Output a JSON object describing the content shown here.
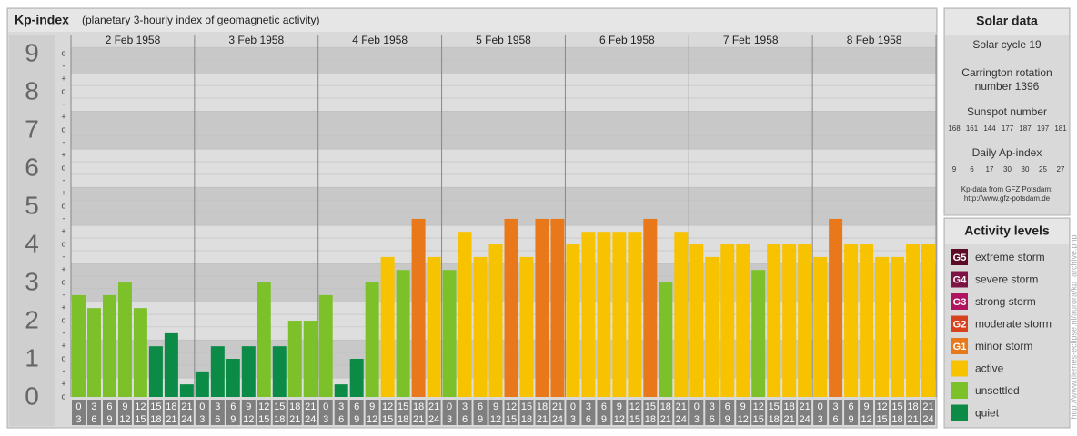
{
  "chart_data": {
    "type": "bar",
    "title": "Kp-index",
    "subtitle": "(planetary 3-hourly index of geomagnetic activity)",
    "days": [
      "2 Feb 1958",
      "3 Feb 1958",
      "4 Feb 1958",
      "5 Feb 1958",
      "6 Feb 1958",
      "7 Feb 1958",
      "8 Feb 1958"
    ],
    "hour_labels": [
      [
        "0",
        "3"
      ],
      [
        "3",
        "6"
      ],
      [
        "6",
        "9"
      ],
      [
        "9",
        "12"
      ],
      [
        "12",
        "15"
      ],
      [
        "15",
        "18"
      ],
      [
        "18",
        "21"
      ],
      [
        "21",
        "24"
      ]
    ],
    "values": [
      [
        2.67,
        2.33,
        2.67,
        3,
        2.33,
        1.33,
        1.67,
        0.33
      ],
      [
        0.67,
        1.33,
        1,
        1.33,
        3,
        1.33,
        2,
        2
      ],
      [
        2.67,
        0.33,
        1,
        3,
        3.67,
        3.33,
        4.67,
        3.67
      ],
      [
        3.33,
        4.33,
        3.67,
        4,
        4.67,
        3.67,
        4.67,
        4.67
      ],
      [
        4,
        4.33,
        4.33,
        4.33,
        4.33,
        4.67,
        3,
        4.33
      ],
      [
        4,
        3.67,
        4,
        4,
        3.33,
        4,
        4,
        4
      ],
      [
        3.67,
        4.67,
        4,
        4,
        3.67,
        3.67,
        4,
        4
      ]
    ],
    "colors": [
      [
        "#7dc12a",
        "#7dc12a",
        "#7dc12a",
        "#7dc12a",
        "#7dc12a",
        "#0b8b45",
        "#0b8b45",
        "#0b8b45"
      ],
      [
        "#0b8b45",
        "#0b8b45",
        "#0b8b45",
        "#0b8b45",
        "#7dc12a",
        "#0b8b45",
        "#7dc12a",
        "#7dc12a"
      ],
      [
        "#7dc12a",
        "#0b8b45",
        "#0b8b45",
        "#7dc12a",
        "#f7c300",
        "#7dc12a",
        "#e8781a",
        "#f7c300"
      ],
      [
        "#7dc12a",
        "#f7c300",
        "#f7c300",
        "#f7c300",
        "#e8781a",
        "#f7c300",
        "#e8781a",
        "#e8781a"
      ],
      [
        "#f7c300",
        "#f7c300",
        "#f7c300",
        "#f7c300",
        "#f7c300",
        "#e8781a",
        "#7dc12a",
        "#f7c300"
      ],
      [
        "#f7c300",
        "#f7c300",
        "#f7c300",
        "#f7c300",
        "#7dc12a",
        "#f7c300",
        "#f7c300",
        "#f7c300"
      ],
      [
        "#f7c300",
        "#e8781a",
        "#f7c300",
        "#f7c300",
        "#f7c300",
        "#f7c300",
        "#f7c300",
        "#f7c300"
      ]
    ],
    "ylim": [
      0,
      9.17
    ],
    "yticks": [
      0,
      1,
      2,
      3,
      4,
      5,
      6,
      7,
      8,
      9
    ],
    "minor_ticks": [
      {
        "value": 0,
        "label": "o"
      },
      {
        "value": 0.33,
        "label": "+"
      },
      {
        "value": 0.67,
        "label": "-"
      },
      {
        "value": 1,
        "label": "o"
      },
      {
        "value": 1.33,
        "label": "+"
      },
      {
        "value": 1.67,
        "label": "-"
      },
      {
        "value": 2,
        "label": "o"
      },
      {
        "value": 2.33,
        "label": "+"
      },
      {
        "value": 2.67,
        "label": "-"
      },
      {
        "value": 3,
        "label": "o"
      },
      {
        "value": 3.33,
        "label": "+"
      },
      {
        "value": 3.67,
        "label": "-"
      },
      {
        "value": 4,
        "label": "o"
      },
      {
        "value": 4.33,
        "label": "+"
      },
      {
        "value": 4.67,
        "label": "-"
      },
      {
        "value": 5,
        "label": "o"
      },
      {
        "value": 5.33,
        "label": "+"
      },
      {
        "value": 5.67,
        "label": "-"
      },
      {
        "value": 6,
        "label": "o"
      },
      {
        "value": 6.33,
        "label": "+"
      },
      {
        "value": 6.67,
        "label": "-"
      },
      {
        "value": 7,
        "label": "o"
      },
      {
        "value": 7.33,
        "label": "+"
      },
      {
        "value": 7.67,
        "label": "-"
      },
      {
        "value": 8,
        "label": "o"
      },
      {
        "value": 8.33,
        "label": "+"
      },
      {
        "value": 8.67,
        "label": "-"
      },
      {
        "value": 9,
        "label": "o"
      }
    ],
    "grid": true
  },
  "solar": {
    "title": "Solar data",
    "cycle": "Solar cycle 19",
    "carrington": [
      "Carrington rotation",
      "number 1396"
    ],
    "sunspot_title": "Sunspot number",
    "sunspots": [
      168,
      161,
      144,
      177,
      187,
      197,
      181
    ],
    "ap_title": "Daily Ap-index",
    "ap": [
      9,
      6,
      17,
      30,
      30,
      25,
      27
    ],
    "source": [
      "Kp-data from GFZ Potsdam:",
      "http://www.gfz-potsdam.de"
    ]
  },
  "legend": {
    "title": "Activity levels",
    "items": [
      {
        "badge": "G5",
        "label": "extreme storm",
        "color": "#5c0a26"
      },
      {
        "badge": "G4",
        "label": "severe storm",
        "color": "#7d1245"
      },
      {
        "badge": "G3",
        "label": "strong storm",
        "color": "#b01460"
      },
      {
        "badge": "G2",
        "label": "moderate storm",
        "color": "#d6421e"
      },
      {
        "badge": "G1",
        "label": "minor storm",
        "color": "#e8781a"
      },
      {
        "label": "active",
        "color": "#f7c300"
      },
      {
        "label": "unsettled",
        "color": "#7dc12a"
      },
      {
        "label": "quiet",
        "color": "#0b8b45"
      }
    ]
  },
  "credit": "http://www.tiemes-eclipse.nl/aurora/kp_archive.php"
}
